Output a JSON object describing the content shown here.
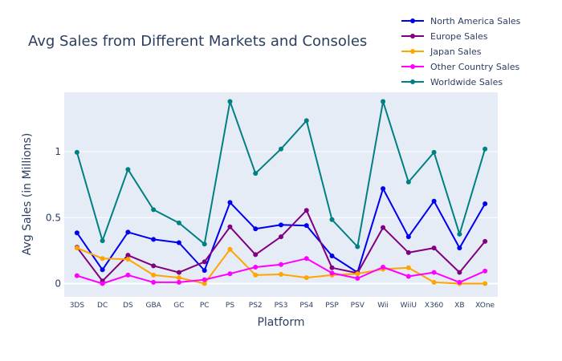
{
  "chart_data": {
    "type": "line",
    "title": "Avg Sales from Different Markets and Consoles",
    "xlabel": "Platform",
    "ylabel": "Avg Sales (in Millions)",
    "categories": [
      "3DS",
      "DC",
      "DS",
      "GBA",
      "GC",
      "PC",
      "PS",
      "PS2",
      "PS3",
      "PS4",
      "PSP",
      "PSV",
      "Wii",
      "WiiU",
      "X360",
      "XB",
      "XOne"
    ],
    "yticks": [
      0,
      0.5,
      1
    ],
    "ytick_labels": [
      "0",
      "0.5",
      "1"
    ],
    "ylim": [
      -0.1,
      1.45
    ],
    "grid": true,
    "legend_position": "top-right",
    "series": [
      {
        "name": "North America Sales",
        "color": "#0000ee",
        "values": [
          0.385,
          0.105,
          0.39,
          0.335,
          0.31,
          0.1,
          0.615,
          0.415,
          0.445,
          0.44,
          0.21,
          0.085,
          0.72,
          0.355,
          0.625,
          0.27,
          0.605
        ]
      },
      {
        "name": "Europe Sales",
        "color": "#800080",
        "values": [
          0.275,
          0.02,
          0.215,
          0.135,
          0.085,
          0.165,
          0.43,
          0.22,
          0.355,
          0.555,
          0.12,
          0.08,
          0.425,
          0.235,
          0.27,
          0.085,
          0.32
        ]
      },
      {
        "name": "Japan Sales",
        "color": "#ffa500",
        "values": [
          0.27,
          0.19,
          0.185,
          0.065,
          0.045,
          0.0,
          0.26,
          0.065,
          0.07,
          0.045,
          0.065,
          0.075,
          0.11,
          0.12,
          0.01,
          0.0,
          0.0
        ]
      },
      {
        "name": "Other Country Sales",
        "color": "#ff00ff",
        "values": [
          0.06,
          0.0,
          0.065,
          0.01,
          0.01,
          0.03,
          0.075,
          0.125,
          0.145,
          0.19,
          0.08,
          0.04,
          0.125,
          0.055,
          0.085,
          0.01,
          0.095
        ]
      },
      {
        "name": "Worldwide Sales",
        "color": "#008080",
        "values": [
          0.995,
          0.325,
          0.865,
          0.56,
          0.46,
          0.3,
          1.38,
          0.835,
          1.02,
          1.235,
          0.485,
          0.28,
          1.38,
          0.77,
          0.995,
          0.375,
          1.02
        ]
      }
    ]
  }
}
